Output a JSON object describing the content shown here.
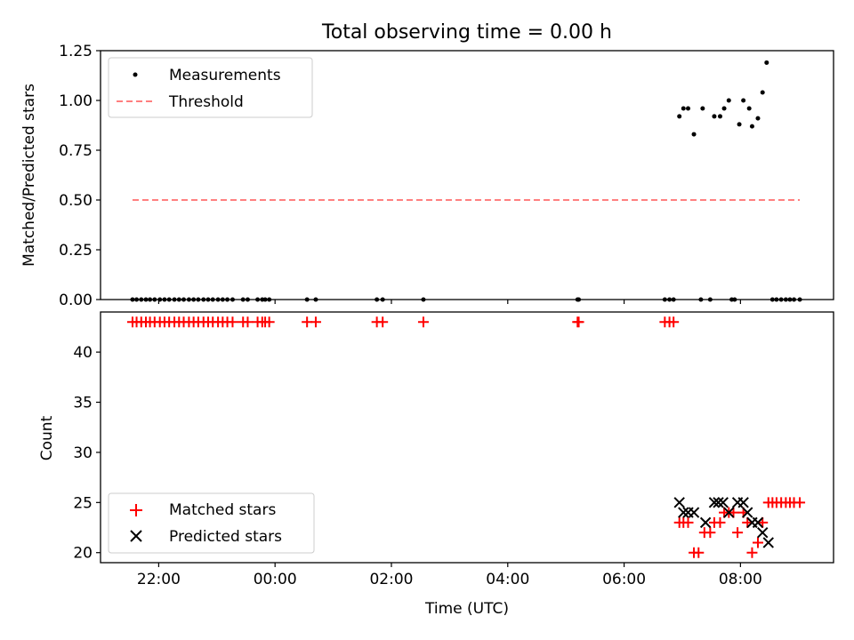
{
  "chart_data": [
    {
      "type": "scatter",
      "title": "Total observing time = 0.00 h",
      "xlabel": "",
      "ylabel": "Matched/Predicted stars",
      "ylim": [
        0.0,
        1.25
      ],
      "yticks": [
        0.0,
        0.25,
        0.5,
        0.75,
        1.0,
        1.25
      ],
      "ytick_labels": [
        "0.00",
        "0.25",
        "0.50",
        "0.75",
        "1.00",
        "1.25"
      ],
      "xlim_hours": [
        -3.0,
        9.6
      ],
      "xticks_hours": [
        -2,
        0,
        2,
        4,
        6,
        8
      ],
      "xtick_labels": [],
      "legend": {
        "placement": "upper-left",
        "entries": [
          {
            "label": "Measurements",
            "marker": "dot"
          },
          {
            "label": "Threshold",
            "marker": "dashed-line"
          }
        ]
      },
      "series": [
        {
          "name": "Measurements",
          "color": "#000000",
          "x": [
            -2.45,
            -2.38,
            -2.3,
            -2.22,
            -2.15,
            -2.07,
            -1.98,
            -1.9,
            -1.82,
            -1.73,
            -1.65,
            -1.57,
            -1.48,
            -1.4,
            -1.32,
            -1.23,
            -1.15,
            -1.07,
            -0.98,
            -0.9,
            -0.82,
            -0.73,
            -0.55,
            -0.47,
            -0.3,
            -0.22,
            -0.17,
            -0.1,
            0.55,
            0.7,
            1.75,
            1.85,
            2.55,
            5.2,
            5.22,
            6.7,
            6.78,
            6.85,
            6.95,
            7.02,
            7.1,
            7.2,
            7.32,
            7.35,
            7.48,
            7.55,
            7.65,
            7.72,
            7.8,
            7.85,
            7.9,
            7.98,
            8.05,
            8.15,
            8.2,
            8.3,
            8.38,
            8.45,
            8.55,
            8.62,
            8.7,
            8.78,
            8.85,
            8.92,
            9.02
          ],
          "y": [
            0,
            0,
            0,
            0,
            0,
            0,
            0,
            0,
            0,
            0,
            0,
            0,
            0,
            0,
            0,
            0,
            0,
            0,
            0,
            0,
            0,
            0,
            0,
            0,
            0,
            0,
            0,
            0,
            0,
            0,
            0,
            0,
            0,
            0,
            0,
            0,
            0,
            0,
            0.92,
            0.96,
            0.96,
            0.83,
            0,
            0.96,
            0,
            0.92,
            0.92,
            0.96,
            1.0,
            0,
            0,
            0.88,
            1.0,
            0.96,
            0.87,
            0.91,
            1.04,
            1.19,
            0,
            0,
            0,
            0,
            0,
            0,
            0
          ]
        },
        {
          "name": "Threshold",
          "type": "line",
          "style": "dashed",
          "color": "#ff7f7f",
          "x": [
            -2.45,
            9.02
          ],
          "y": [
            0.5,
            0.5
          ]
        }
      ]
    },
    {
      "type": "scatter",
      "title": "",
      "xlabel": "Time (UTC)",
      "ylabel": "Count",
      "ylim": [
        19,
        44
      ],
      "yticks": [
        20,
        25,
        30,
        35,
        40
      ],
      "ytick_labels": [
        "20",
        "25",
        "30",
        "35",
        "40"
      ],
      "xlim_hours": [
        -3.0,
        9.6
      ],
      "xticks_hours": [
        -2,
        0,
        2,
        4,
        6,
        8
      ],
      "xtick_labels": [
        "22:00",
        "00:00",
        "02:00",
        "04:00",
        "06:00",
        "08:00"
      ],
      "legend": {
        "placement": "lower-left",
        "entries": [
          {
            "label": "Matched stars",
            "marker": "plus"
          },
          {
            "label": "Predicted stars",
            "marker": "x"
          }
        ]
      },
      "series": [
        {
          "name": "Matched stars",
          "marker": "plus",
          "color": "#ff0000",
          "x": [
            -2.45,
            -2.38,
            -2.3,
            -2.22,
            -2.15,
            -2.07,
            -1.98,
            -1.9,
            -1.82,
            -1.73,
            -1.65,
            -1.57,
            -1.48,
            -1.4,
            -1.32,
            -1.23,
            -1.15,
            -1.07,
            -0.98,
            -0.9,
            -0.82,
            -0.73,
            -0.55,
            -0.47,
            -0.3,
            -0.22,
            -0.17,
            -0.1,
            0.55,
            0.7,
            1.75,
            1.85,
            2.55,
            5.2,
            5.22,
            6.7,
            6.78,
            6.85,
            6.95,
            7.02,
            7.1,
            7.2,
            7.28,
            7.38,
            7.48,
            7.55,
            7.65,
            7.72,
            7.8,
            7.88,
            7.95,
            8.05,
            8.12,
            8.2,
            8.3,
            8.38,
            8.48,
            8.55,
            8.62,
            8.7,
            8.78,
            8.85,
            8.92,
            9.02
          ],
          "y": [
            43,
            43,
            43,
            43,
            43,
            43,
            43,
            43,
            43,
            43,
            43,
            43,
            43,
            43,
            43,
            43,
            43,
            43,
            43,
            43,
            43,
            43,
            43,
            43,
            43,
            43,
            43,
            43,
            43,
            43,
            43,
            43,
            43,
            43,
            43,
            43,
            43,
            43,
            23,
            23,
            23,
            20,
            20,
            22,
            22,
            23,
            23,
            24,
            24,
            24,
            22,
            24,
            23,
            20,
            21,
            23,
            25,
            25,
            25,
            25,
            25,
            25,
            25,
            25
          ]
        },
        {
          "name": "Predicted stars",
          "marker": "x",
          "color": "#000000",
          "x": [
            6.95,
            7.02,
            7.1,
            7.2,
            7.4,
            7.55,
            7.62,
            7.7,
            7.8,
            7.95,
            8.05,
            8.12,
            8.2,
            8.3,
            8.38,
            8.48
          ],
          "y": [
            25,
            24,
            24,
            24,
            23,
            25,
            25,
            25,
            24,
            25,
            25,
            24,
            23,
            23,
            22,
            21
          ]
        }
      ]
    }
  ]
}
